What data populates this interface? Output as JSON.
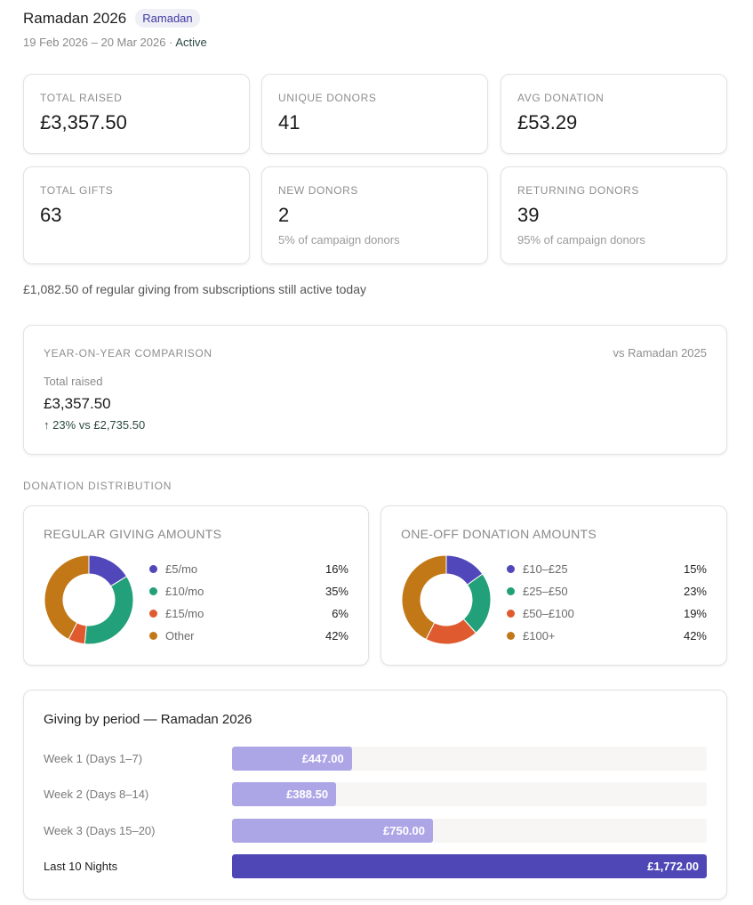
{
  "header": {
    "title": "Ramadan 2026",
    "badge": "Ramadan",
    "date_range": "19 Feb 2026 – 20 Mar 2026",
    "separator": "·",
    "status": "Active"
  },
  "stats": [
    {
      "label": "TOTAL RAISED",
      "value": "£3,357.50",
      "sub": ""
    },
    {
      "label": "UNIQUE DONORS",
      "value": "41",
      "sub": ""
    },
    {
      "label": "AVG DONATION",
      "value": "£53.29",
      "sub": ""
    },
    {
      "label": "TOTAL GIFTS",
      "value": "63",
      "sub": ""
    },
    {
      "label": "NEW DONORS",
      "value": "2",
      "sub": "5% of campaign donors"
    },
    {
      "label": "RETURNING DONORS",
      "value": "39",
      "sub": "95% of campaign donors"
    }
  ],
  "regular_note": "£1,082.50 of regular giving from subscriptions still active today",
  "yoy": {
    "label": "YEAR-ON-YEAR COMPARISON",
    "vs": "vs Ramadan 2025",
    "total_label": "Total raised",
    "total": "£3,357.50",
    "change": "↑ 23% vs £2,735.50"
  },
  "distribution": {
    "label": "DONATION DISTRIBUTION",
    "charts": [
      {
        "title": "REGULAR GIVING AMOUNTS",
        "segments": [
          {
            "name": "£5/mo",
            "pct": "16%",
            "value": 16,
            "color": "#5147ba"
          },
          {
            "name": "£10/mo",
            "pct": "35%",
            "value": 35,
            "color": "#21a079"
          },
          {
            "name": "£15/mo",
            "pct": "6%",
            "value": 6,
            "color": "#df5a2f"
          },
          {
            "name": "Other",
            "pct": "42%",
            "value": 42,
            "color": "#c27817"
          }
        ]
      },
      {
        "title": "ONE-OFF DONATION AMOUNTS",
        "segments": [
          {
            "name": "£10–£25",
            "pct": "15%",
            "value": 15,
            "color": "#5147ba"
          },
          {
            "name": "£25–£50",
            "pct": "23%",
            "value": 23,
            "color": "#21a079"
          },
          {
            "name": "£50–£100",
            "pct": "19%",
            "value": 19,
            "color": "#df5a2f"
          },
          {
            "name": "£100+",
            "pct": "42%",
            "value": 42,
            "color": "#c27817"
          }
        ]
      }
    ]
  },
  "periods": {
    "title": "Giving by period — Ramadan 2026",
    "rows": [
      {
        "label": "Week 1 (Days 1–7)",
        "display": "£447.00",
        "amount": 447.0
      },
      {
        "label": "Week 2 (Days 8–14)",
        "display": "£388.50",
        "amount": 388.5
      },
      {
        "label": "Week 3 (Days 15–20)",
        "display": "£750.00",
        "amount": 750.0
      },
      {
        "label": "Last 10 Nights",
        "display": "£1,772.00",
        "amount": 1772.0
      }
    ]
  },
  "chart_data": [
    {
      "type": "pie",
      "title": "REGULAR GIVING AMOUNTS",
      "categories": [
        "£5/mo",
        "£10/mo",
        "£15/mo",
        "Other"
      ],
      "values": [
        16,
        35,
        6,
        42
      ]
    },
    {
      "type": "pie",
      "title": "ONE-OFF DONATION AMOUNTS",
      "categories": [
        "£10–£25",
        "£25–£50",
        "£50–£100",
        "£100+"
      ],
      "values": [
        15,
        23,
        19,
        42
      ]
    },
    {
      "type": "bar",
      "title": "Giving by period — Ramadan 2026",
      "categories": [
        "Week 1 (Days 1–7)",
        "Week 2 (Days 8–14)",
        "Week 3 (Days 15–20)",
        "Last 10 Nights"
      ],
      "values": [
        447.0,
        388.5,
        750.0,
        1772.0
      ]
    }
  ]
}
